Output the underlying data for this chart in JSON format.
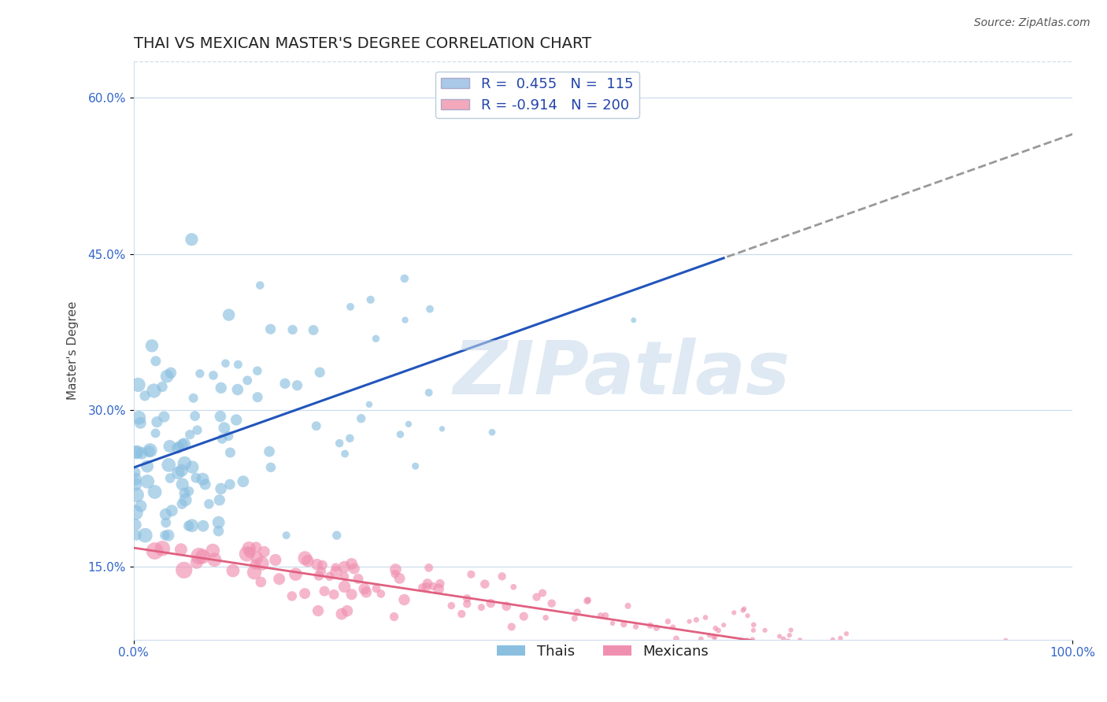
{
  "title": "THAI VS MEXICAN MASTER'S DEGREE CORRELATION CHART",
  "source": "Source: ZipAtlas.com",
  "ylabel": "Master's Degree",
  "xlabel": "",
  "xlim": [
    0.0,
    1.0
  ],
  "ylim": [
    0.08,
    0.635
  ],
  "yticks": [
    0.15,
    0.3,
    0.45,
    0.6
  ],
  "ytick_labels": [
    "15.0%",
    "30.0%",
    "45.0%",
    "60.0%"
  ],
  "xticks": [
    0.0,
    1.0
  ],
  "xtick_labels": [
    "0.0%",
    "100.0%"
  ],
  "legend_entries": [
    {
      "label": "R =  0.455   N =  115",
      "color": "#aac9e8"
    },
    {
      "label": "R = -0.914   N = 200",
      "color": "#f4a8bb"
    }
  ],
  "thai_R": 0.455,
  "thai_N": 115,
  "mexican_R": -0.914,
  "mexican_N": 200,
  "thai_color": "#8bbfe0",
  "mexican_color": "#f090b0",
  "thai_line_color": "#2255bb",
  "mexican_line_color": "#e06080",
  "dashed_line_color": "#999999",
  "watermark_text": "ZIPatlas",
  "watermark_color": "#c5d8ea",
  "background_color": "#ffffff",
  "grid_color": "#ccddee",
  "title_fontsize": 14,
  "axis_label_fontsize": 11,
  "tick_fontsize": 11,
  "legend_fontsize": 13,
  "thai_line_intercept": 0.245,
  "thai_line_slope": 0.32,
  "mexican_line_intercept": 0.168,
  "mexican_line_slope": -0.135
}
